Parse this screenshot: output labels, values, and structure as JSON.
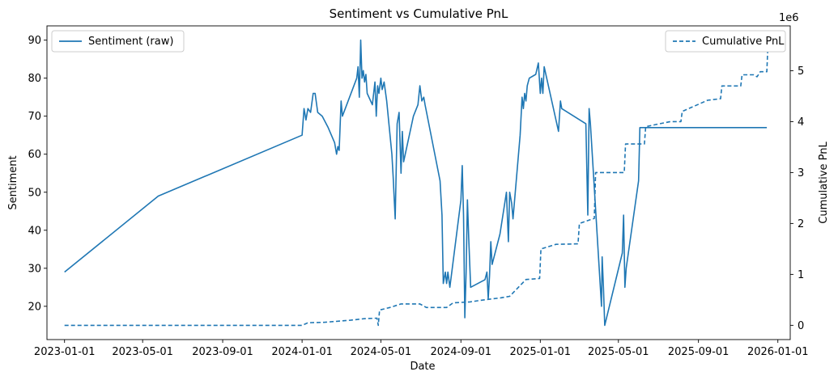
{
  "chart_data": {
    "type": "line",
    "title": "Sentiment vs Cumulative PnL",
    "xlabel": "Date",
    "ylabel_left": "Sentiment",
    "ylabel_right": "Cumulative PnL",
    "right_axis_multiplier": "1e6",
    "x_ticks": [
      "2023-01-01",
      "2023-05-01",
      "2023-09-01",
      "2024-01-01",
      "2024-05-01",
      "2024-09-01",
      "2025-01-01",
      "2025-05-01",
      "2025-09-01",
      "2026-01-01"
    ],
    "y_left_ticks": [
      20,
      30,
      40,
      50,
      60,
      70,
      80,
      90
    ],
    "y_right_ticks": [
      0,
      1,
      2,
      3,
      4,
      5
    ],
    "xlim": [
      "2022-12-05",
      "2026-01-20"
    ],
    "ylim_left": [
      11.25,
      93.75
    ],
    "ylim_right": [
      -0.28,
      5.88
    ],
    "grid": false,
    "legend_left": "top-left",
    "legend_right": "top-right",
    "color": "#1f77b4",
    "series": [
      {
        "name": "Sentiment (raw)",
        "axis": "left",
        "style": "solid",
        "points": [
          [
            "2023-01-01",
            29
          ],
          [
            "2023-05-25",
            49
          ],
          [
            "2024-01-01",
            65
          ],
          [
            "2024-01-04",
            72
          ],
          [
            "2024-01-07",
            69
          ],
          [
            "2024-01-10",
            72
          ],
          [
            "2024-01-14",
            71
          ],
          [
            "2024-01-18",
            76
          ],
          [
            "2024-01-21",
            76
          ],
          [
            "2024-01-25",
            71
          ],
          [
            "2024-02-01",
            70
          ],
          [
            "2024-02-10",
            67
          ],
          [
            "2024-02-20",
            63
          ],
          [
            "2024-02-23",
            60
          ],
          [
            "2024-02-25",
            62
          ],
          [
            "2024-02-27",
            61
          ],
          [
            "2024-03-01",
            74
          ],
          [
            "2024-03-03",
            70
          ],
          [
            "2024-03-25",
            80
          ],
          [
            "2024-03-27",
            83
          ],
          [
            "2024-03-29",
            75
          ],
          [
            "2024-03-31",
            90
          ],
          [
            "2024-04-02",
            80
          ],
          [
            "2024-04-04",
            82
          ],
          [
            "2024-04-06",
            79
          ],
          [
            "2024-04-08",
            81
          ],
          [
            "2024-04-10",
            76
          ],
          [
            "2024-04-18",
            73
          ],
          [
            "2024-04-22",
            79
          ],
          [
            "2024-04-24",
            70
          ],
          [
            "2024-04-26",
            78
          ],
          [
            "2024-04-28",
            76
          ],
          [
            "2024-05-01",
            80
          ],
          [
            "2024-05-03",
            77
          ],
          [
            "2024-05-06",
            79
          ],
          [
            "2024-05-10",
            74
          ],
          [
            "2024-05-18",
            60
          ],
          [
            "2024-05-20",
            54
          ],
          [
            "2024-05-23",
            43
          ],
          [
            "2024-05-26",
            68
          ],
          [
            "2024-05-29",
            71
          ],
          [
            "2024-06-01",
            55
          ],
          [
            "2024-06-03",
            66
          ],
          [
            "2024-06-05",
            58
          ],
          [
            "2024-06-20",
            70
          ],
          [
            "2024-06-27",
            73
          ],
          [
            "2024-06-30",
            78
          ],
          [
            "2024-07-03",
            74
          ],
          [
            "2024-07-06",
            75
          ],
          [
            "2024-07-08",
            73
          ],
          [
            "2024-07-31",
            53
          ],
          [
            "2024-08-03",
            44
          ],
          [
            "2024-08-05",
            26
          ],
          [
            "2024-08-08",
            29
          ],
          [
            "2024-08-10",
            26
          ],
          [
            "2024-08-12",
            29
          ],
          [
            "2024-08-15",
            25
          ],
          [
            "2024-08-18",
            29
          ],
          [
            "2024-09-01",
            48
          ],
          [
            "2024-09-03",
            57
          ],
          [
            "2024-09-05",
            44
          ],
          [
            "2024-09-07",
            17
          ],
          [
            "2024-09-09",
            29
          ],
          [
            "2024-09-11",
            48
          ],
          [
            "2024-09-13",
            38
          ],
          [
            "2024-09-16",
            25
          ],
          [
            "2024-10-08",
            27
          ],
          [
            "2024-10-11",
            29
          ],
          [
            "2024-10-13",
            22
          ],
          [
            "2024-10-15",
            28
          ],
          [
            "2024-10-17",
            37
          ],
          [
            "2024-10-19",
            31
          ],
          [
            "2024-10-31",
            39
          ],
          [
            "2024-11-10",
            50
          ],
          [
            "2024-11-13",
            37
          ],
          [
            "2024-11-15",
            50
          ],
          [
            "2024-11-18",
            47
          ],
          [
            "2024-11-20",
            43
          ],
          [
            "2024-12-01",
            65
          ],
          [
            "2024-12-04",
            75
          ],
          [
            "2024-12-06",
            72
          ],
          [
            "2024-12-08",
            76
          ],
          [
            "2024-12-10",
            74
          ],
          [
            "2024-12-12",
            78
          ],
          [
            "2024-12-15",
            80
          ],
          [
            "2024-12-25",
            81
          ],
          [
            "2024-12-29",
            84
          ],
          [
            "2025-01-01",
            76
          ],
          [
            "2025-01-03",
            80
          ],
          [
            "2025-01-05",
            76
          ],
          [
            "2025-01-07",
            83
          ],
          [
            "2025-01-29",
            66
          ],
          [
            "2025-02-01",
            74
          ],
          [
            "2025-02-03",
            72
          ],
          [
            "2025-03-12",
            68
          ],
          [
            "2025-03-15",
            44
          ],
          [
            "2025-03-17",
            72
          ],
          [
            "2025-03-19",
            68
          ],
          [
            "2025-04-05",
            20
          ],
          [
            "2025-04-06",
            33
          ],
          [
            "2025-04-08",
            25
          ],
          [
            "2025-04-10",
            15
          ],
          [
            "2025-05-07",
            34
          ],
          [
            "2025-05-09",
            44
          ],
          [
            "2025-05-11",
            25
          ],
          [
            "2025-05-13",
            30
          ],
          [
            "2025-06-01",
            53
          ],
          [
            "2025-06-03",
            67
          ],
          [
            "2025-12-15",
            67
          ]
        ]
      },
      {
        "name": "Cumulative PnL",
        "axis": "right",
        "style": "dashed",
        "points": [
          [
            "2023-01-01",
            0
          ],
          [
            "2024-01-01",
            0
          ],
          [
            "2024-01-10",
            0.05
          ],
          [
            "2024-02-05",
            0.06
          ],
          [
            "2024-02-25",
            0.08
          ],
          [
            "2024-03-15",
            0.1
          ],
          [
            "2024-04-05",
            0.13
          ],
          [
            "2024-04-25",
            0.14
          ],
          [
            "2024-04-27",
            0
          ],
          [
            "2024-04-29",
            0.3
          ],
          [
            "2024-05-15",
            0.35
          ],
          [
            "2024-06-01",
            0.42
          ],
          [
            "2024-06-30",
            0.42
          ],
          [
            "2024-07-10",
            0.35
          ],
          [
            "2024-08-10",
            0.35
          ],
          [
            "2024-08-20",
            0.44
          ],
          [
            "2024-09-15",
            0.46
          ],
          [
            "2024-10-01",
            0.49
          ],
          [
            "2024-11-01",
            0.54
          ],
          [
            "2024-11-15",
            0.57
          ],
          [
            "2024-12-10",
            0.9
          ],
          [
            "2024-12-31",
            0.92
          ],
          [
            "2025-01-02",
            1.5
          ],
          [
            "2025-01-25",
            1.59
          ],
          [
            "2025-02-28",
            1.6
          ],
          [
            "2025-03-02",
            2.0
          ],
          [
            "2025-03-25",
            2.1
          ],
          [
            "2025-03-27",
            3.0
          ],
          [
            "2025-05-10",
            3.0
          ],
          [
            "2025-05-12",
            3.56
          ],
          [
            "2025-06-10",
            3.56
          ],
          [
            "2025-06-12",
            3.9
          ],
          [
            "2025-06-30",
            3.95
          ],
          [
            "2025-07-20",
            4.0
          ],
          [
            "2025-08-05",
            4.0
          ],
          [
            "2025-08-07",
            4.2
          ],
          [
            "2025-08-25",
            4.3
          ],
          [
            "2025-09-15",
            4.42
          ],
          [
            "2025-10-05",
            4.45
          ],
          [
            "2025-10-07",
            4.7
          ],
          [
            "2025-11-05",
            4.7
          ],
          [
            "2025-11-07",
            4.92
          ],
          [
            "2025-11-25",
            4.92
          ],
          [
            "2025-11-30",
            4.88
          ],
          [
            "2025-12-05",
            4.98
          ],
          [
            "2025-12-15",
            4.98
          ],
          [
            "2025-12-17",
            5.6
          ]
        ]
      }
    ]
  }
}
